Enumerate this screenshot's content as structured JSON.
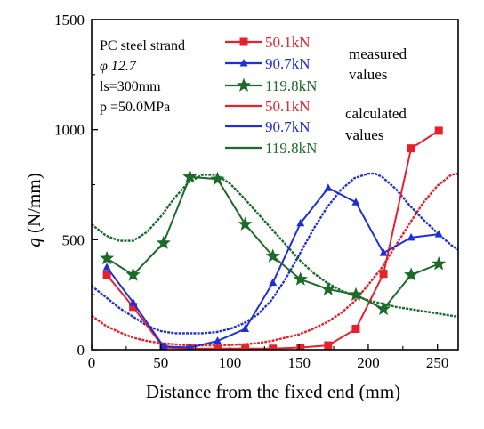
{
  "chart_data": {
    "type": "line",
    "xlabel": "Distance from the fixed end (mm)",
    "ylabel": "q (N/mm)",
    "xlim": [
      0,
      265
    ],
    "ylim": [
      0,
      1500
    ],
    "xticks": [
      "0",
      "50",
      "100",
      "150",
      "200",
      "250"
    ],
    "yticks": [
      "0",
      "500",
      "1000",
      "1500"
    ],
    "info_lines": [
      "PC steel strand",
      "φ 12.7",
      "ls=300mm",
      "p =50.0MPa"
    ],
    "notes": {
      "measured": [
        "measured",
        "values"
      ],
      "calculated": [
        "calculated",
        "values"
      ]
    },
    "series": [
      {
        "name": "50.1kN",
        "group": "measured",
        "color": "#e8202a",
        "marker": "square",
        "x": [
          11,
          30,
          52,
          71,
          91,
          111,
          131,
          151,
          171,
          191,
          211,
          231,
          251
        ],
        "y": [
          340,
          195,
          10,
          5,
          5,
          5,
          5,
          10,
          20,
          95,
          345,
          915,
          995
        ]
      },
      {
        "name": "90.7kN",
        "group": "measured",
        "color": "#1f2fd6",
        "marker": "triangle",
        "x": [
          11,
          30,
          52,
          71,
          91,
          111,
          131,
          151,
          171,
          191,
          211,
          231,
          251
        ],
        "y": [
          375,
          215,
          15,
          10,
          40,
          95,
          305,
          575,
          735,
          670,
          440,
          510,
          525
        ]
      },
      {
        "name": "119.8kN",
        "group": "measured",
        "color": "#1c6b2a",
        "marker": "star",
        "x": [
          11,
          30,
          52,
          71,
          91,
          111,
          131,
          151,
          171,
          191,
          211,
          231,
          251
        ],
        "y": [
          415,
          340,
          485,
          785,
          775,
          570,
          425,
          320,
          275,
          250,
          185,
          340,
          390
        ]
      },
      {
        "name": "50.1kN",
        "group": "calculated",
        "color": "#e8202a",
        "marker": "none",
        "x": [
          0,
          10,
          20,
          30,
          40,
          50,
          60,
          70,
          80,
          90,
          100,
          110,
          120,
          130,
          140,
          150,
          160,
          170,
          180,
          190,
          200,
          210,
          220,
          230,
          240,
          250,
          260,
          265
        ],
        "y": [
          155,
          110,
          80,
          55,
          40,
          30,
          25,
          20,
          20,
          20,
          22,
          25,
          30,
          40,
          55,
          70,
          95,
          125,
          165,
          220,
          295,
          375,
          475,
          575,
          670,
          745,
          795,
          800
        ]
      },
      {
        "name": "90.7kN",
        "group": "calculated",
        "color": "#1f2fd6",
        "marker": "none",
        "x": [
          0,
          10,
          20,
          30,
          40,
          50,
          60,
          70,
          80,
          90,
          100,
          110,
          120,
          130,
          140,
          150,
          160,
          170,
          180,
          190,
          200,
          205,
          210,
          220,
          230,
          240,
          250,
          260,
          265
        ],
        "y": [
          290,
          240,
          190,
          150,
          110,
          85,
          75,
          75,
          75,
          80,
          95,
          120,
          160,
          225,
          320,
          430,
          545,
          645,
          725,
          780,
          800,
          800,
          785,
          730,
          655,
          590,
          530,
          475,
          455
        ]
      },
      {
        "name": "119.8kN",
        "group": "calculated",
        "color": "#1c6b2a",
        "marker": "none",
        "x": [
          0,
          10,
          20,
          30,
          40,
          50,
          60,
          70,
          80,
          90,
          100,
          110,
          120,
          130,
          140,
          150,
          160,
          170,
          180,
          190,
          200,
          210,
          220,
          230,
          240,
          250,
          260,
          265
        ],
        "y": [
          570,
          520,
          495,
          495,
          535,
          605,
          690,
          760,
          795,
          795,
          755,
          690,
          620,
          550,
          480,
          410,
          350,
          305,
          270,
          245,
          225,
          210,
          195,
          185,
          175,
          165,
          155,
          150
        ]
      }
    ]
  }
}
